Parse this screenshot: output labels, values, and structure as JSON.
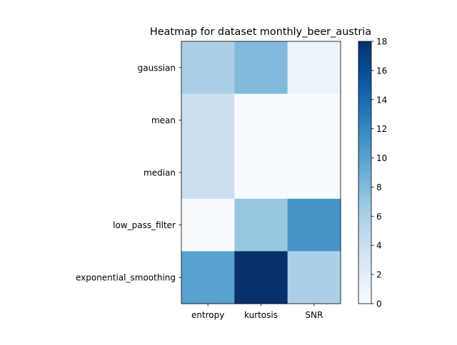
{
  "chart_data": {
    "type": "heatmap",
    "title": "Heatmap for dataset monthly_beer_austria",
    "xlabel": "",
    "ylabel": "",
    "columns": [
      "entropy",
      "kurtosis",
      "SNR"
    ],
    "rows": [
      "gaussian",
      "mean",
      "median",
      "low_pass_filter",
      "exponential_smoothing"
    ],
    "values": [
      [
        6,
        8,
        1
      ],
      [
        4,
        0,
        0
      ],
      [
        4,
        0,
        0
      ],
      [
        0,
        7,
        11
      ],
      [
        10,
        18,
        6
      ]
    ],
    "colorbar": {
      "min": 0,
      "max": 18,
      "ticks": [
        "0",
        "2",
        "4",
        "6",
        "8",
        "10",
        "12",
        "14",
        "16",
        "18"
      ]
    },
    "colormap": "Blues"
  }
}
